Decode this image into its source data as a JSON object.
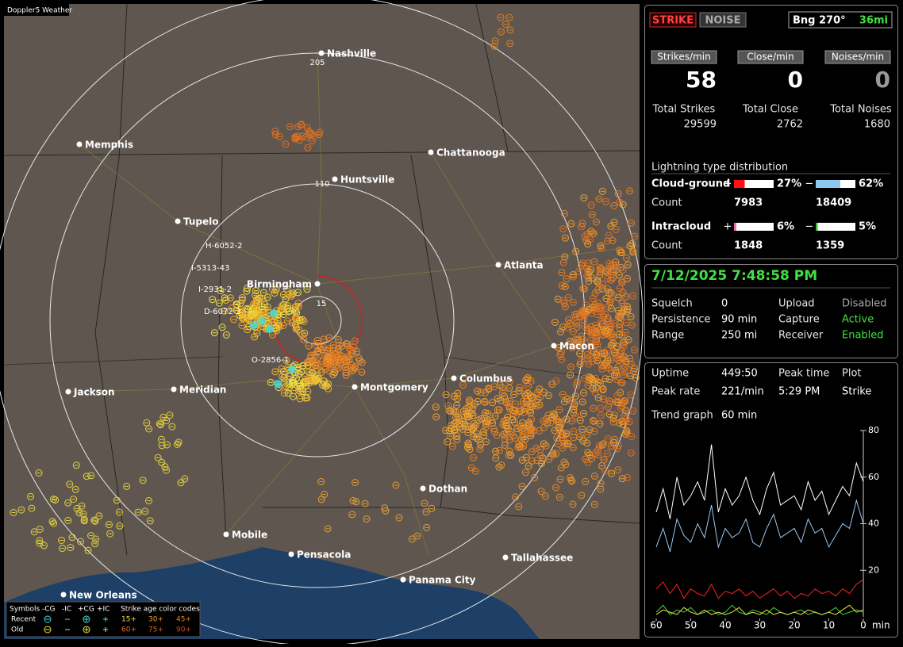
{
  "map": {
    "title": "Doppler5 Weather",
    "cities": [
      "Nashville",
      "Memphis",
      "Chattanooga",
      "Huntsville",
      "Tupelo",
      "Birmingham",
      "Atlanta",
      "Macon",
      "Columbus",
      "Montgomery",
      "Jackson",
      "Meridian",
      "Dothan",
      "Mobile",
      "Pensacola",
      "Panama City",
      "Tallahassee",
      "New Orleans"
    ],
    "ring_labels": [
      "205",
      "110",
      "15"
    ],
    "storm_labels": [
      "H-6052-2",
      "I-5313-43",
      "I-2931-2",
      "D-6072-3",
      "O-2856-1"
    ],
    "legend": {
      "symbols": "Symbols",
      "types": [
        "-CG",
        "-IC",
        "+CG",
        "+IC"
      ],
      "age_title": "Strike age color codes",
      "rows": [
        "Recent",
        "Old"
      ],
      "ages": [
        "15+",
        "30+",
        "45+",
        "60+",
        "75+",
        "90+"
      ]
    }
  },
  "status": {
    "strike": "STRIKE",
    "noise": "NOISE",
    "bearing": "Bng 270°",
    "distance": "36mi"
  },
  "rates": [
    {
      "label": "Strikes/min",
      "value": 58,
      "total_label": "Total Strikes",
      "total": 29599
    },
    {
      "label": "Close/min",
      "value": 0,
      "total_label": "Total Close",
      "total": 2762
    },
    {
      "label": "Noises/min",
      "value": 0,
      "total_label": "Total Noises",
      "total": 1680
    }
  ],
  "distribution": {
    "title": "Lightning type distribution",
    "count_label": "Count",
    "rows": [
      {
        "name": "Cloud-ground",
        "positive": {
          "sign": "+",
          "percent": {
            "value": 27,
            "label": "27%"
          },
          "count": 7983
        },
        "negative": {
          "sign": "−",
          "percent": {
            "value": 62,
            "label": "62%"
          },
          "count": 18409
        }
      },
      {
        "name": "Intracloud",
        "positive": {
          "sign": "+",
          "percent": {
            "value": 6,
            "label": "6%"
          },
          "count": 1848
        },
        "negative": {
          "sign": "−",
          "percent": {
            "value": 5,
            "label": "5%"
          },
          "count": 1359
        }
      }
    ]
  },
  "receiver": {
    "datetime": "7/12/2025 7:48:58 PM",
    "settings": [
      {
        "label": "Squelch",
        "value": 0
      },
      {
        "label": "Persistence",
        "value": "90 min"
      },
      {
        "label": "Range",
        "value": "250 mi"
      },
      {
        "label": "Upload",
        "value": "Disabled"
      },
      {
        "label": "Capture",
        "value": "Active"
      },
      {
        "label": "Receiver",
        "value": "Enabled"
      }
    ]
  },
  "stats": {
    "items": [
      {
        "label": "Uptime",
        "value": "449:50"
      },
      {
        "label": "Peak time",
        "value": "5:29 PM"
      },
      {
        "label": "Plot",
        "value": "Strike"
      },
      {
        "label": "Peak rate",
        "value": "221/min"
      }
    ],
    "trend_label": "Trend graph",
    "trend_window": "60 min"
  },
  "trend_chart": {
    "type": "line",
    "xlim": [
      60,
      0
    ],
    "ylim": [
      0,
      80
    ],
    "xticks": [
      60,
      50,
      40,
      30,
      20,
      10,
      0
    ],
    "yticks": [
      20,
      40,
      60,
      80
    ],
    "x_label": "min",
    "x": [
      60,
      58,
      56,
      54,
      52,
      50,
      48,
      46,
      44,
      42,
      40,
      38,
      36,
      34,
      32,
      30,
      28,
      26,
      24,
      22,
      20,
      18,
      16,
      14,
      12,
      10,
      8,
      6,
      4,
      2,
      0
    ],
    "series": [
      {
        "color": "#ffffff",
        "values": [
          45,
          55,
          42,
          60,
          48,
          52,
          58,
          50,
          74,
          45,
          55,
          48,
          52,
          60,
          50,
          44,
          55,
          62,
          48,
          50,
          52,
          46,
          58,
          50,
          54,
          44,
          50,
          56,
          52,
          66,
          58
        ]
      },
      {
        "color": "#9cc8ee",
        "values": [
          30,
          38,
          28,
          42,
          35,
          32,
          40,
          34,
          48,
          30,
          38,
          34,
          36,
          42,
          32,
          30,
          38,
          44,
          34,
          36,
          38,
          32,
          42,
          36,
          38,
          30,
          35,
          40,
          38,
          50,
          40
        ]
      },
      {
        "color": "#ff2020",
        "values": [
          12,
          15,
          10,
          14,
          8,
          12,
          10,
          9,
          14,
          8,
          11,
          10,
          12,
          9,
          11,
          8,
          10,
          12,
          9,
          11,
          8,
          10,
          9,
          12,
          10,
          11,
          9,
          12,
          10,
          14,
          16
        ]
      },
      {
        "color": "#40d040",
        "values": [
          2,
          5,
          1,
          3,
          2,
          4,
          1,
          2,
          3,
          1,
          2,
          5,
          2,
          1,
          3,
          2,
          1,
          4,
          2,
          1,
          2,
          3,
          1,
          2,
          1,
          2,
          4,
          1,
          2,
          3,
          2
        ]
      },
      {
        "color": "#f0e040",
        "values": [
          1,
          3,
          2,
          1,
          4,
          2,
          1,
          3,
          1,
          2,
          1,
          2,
          4,
          1,
          2,
          1,
          3,
          1,
          2,
          1,
          2,
          1,
          3,
          2,
          1,
          2,
          1,
          3,
          5,
          2,
          3
        ]
      }
    ]
  }
}
